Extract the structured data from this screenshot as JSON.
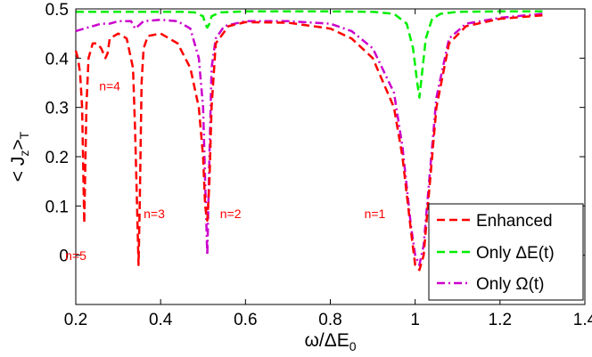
{
  "chart_data": {
    "type": "line",
    "title": "",
    "xlabel": "ω/ΔE",
    "xlabel_sub": "0",
    "ylabel": "< J",
    "ylabel_sub1": "z",
    "ylabel_mid": ">",
    "ylabel_sub2": "T",
    "xlim": [
      0.2,
      1.4
    ],
    "ylim": [
      -0.1,
      0.5
    ],
    "xticks": [
      0.2,
      0.4,
      0.6,
      0.8,
      1,
      1.2,
      1.4
    ],
    "xtick_labels": [
      "0.2",
      "0.4",
      "0.6",
      "0.8",
      "1",
      "1.2",
      "1.4"
    ],
    "yticks": [
      0,
      0.1,
      0.2,
      0.3,
      0.4,
      0.5
    ],
    "ytick_labels": [
      "0",
      "0.1",
      "0.2",
      "0.3",
      "0.4",
      "0.5"
    ],
    "grid": false,
    "legend_position": "bottom-right",
    "series": [
      {
        "name": "Enhanced",
        "color": "#ff0000",
        "style": "dashed",
        "x": [
          0.2,
          0.205,
          0.21,
          0.215,
          0.22,
          0.225,
          0.23,
          0.24,
          0.25,
          0.255,
          0.26,
          0.265,
          0.27,
          0.275,
          0.28,
          0.3,
          0.32,
          0.335,
          0.34,
          0.345,
          0.348,
          0.351,
          0.355,
          0.36,
          0.37,
          0.4,
          0.44,
          0.47,
          0.49,
          0.5,
          0.505,
          0.51,
          0.515,
          0.52,
          0.53,
          0.56,
          0.6,
          0.7,
          0.8,
          0.85,
          0.9,
          0.95,
          0.97,
          0.99,
          1.0,
          1.01,
          1.02,
          1.03,
          1.05,
          1.08,
          1.12,
          1.2,
          1.3
        ],
        "values": [
          0.415,
          0.4,
          0.37,
          0.3,
          0.065,
          0.3,
          0.4,
          0.43,
          0.43,
          0.425,
          0.42,
          0.41,
          0.4,
          0.41,
          0.44,
          0.45,
          0.44,
          0.38,
          0.25,
          0.08,
          -0.02,
          0.12,
          0.35,
          0.42,
          0.445,
          0.45,
          0.43,
          0.38,
          0.3,
          0.2,
          0.1,
          0.07,
          0.15,
          0.3,
          0.43,
          0.465,
          0.473,
          0.472,
          0.46,
          0.44,
          0.4,
          0.3,
          0.2,
          0.05,
          -0.02,
          -0.03,
          0.0,
          0.1,
          0.3,
          0.43,
          0.465,
          0.48,
          0.487
        ]
      },
      {
        "name": "Only ΔE(t)",
        "legend_main": "Only ",
        "legend_symbol": "ΔE(t)",
        "color": "#00ee00",
        "style": "dashed",
        "x": [
          0.2,
          0.3,
          0.4,
          0.45,
          0.48,
          0.5,
          0.505,
          0.51,
          0.515,
          0.52,
          0.54,
          0.6,
          0.8,
          0.9,
          0.95,
          0.98,
          0.995,
          1.005,
          1.01,
          1.015,
          1.025,
          1.04,
          1.06,
          1.1,
          1.2,
          1.3
        ],
        "values": [
          0.494,
          0.494,
          0.494,
          0.494,
          0.493,
          0.485,
          0.47,
          0.462,
          0.47,
          0.485,
          0.493,
          0.495,
          0.495,
          0.494,
          0.49,
          0.47,
          0.42,
          0.35,
          0.32,
          0.36,
          0.44,
          0.48,
          0.49,
          0.494,
          0.495,
          0.495
        ]
      },
      {
        "name": "Only Ω(t)",
        "legend_main": "Only ",
        "legend_symbol": "Ω(t)",
        "color": "#cc00cc",
        "style": "dashdot",
        "x": [
          0.2,
          0.22,
          0.24,
          0.26,
          0.28,
          0.3,
          0.33,
          0.34,
          0.36,
          0.4,
          0.44,
          0.47,
          0.49,
          0.5,
          0.505,
          0.51,
          0.515,
          0.52,
          0.53,
          0.55,
          0.6,
          0.7,
          0.8,
          0.85,
          0.9,
          0.95,
          0.97,
          0.99,
          1.0,
          1.01,
          1.02,
          1.03,
          1.05,
          1.08,
          1.12,
          1.2,
          1.3
        ],
        "values": [
          0.455,
          0.46,
          0.465,
          0.47,
          0.47,
          0.475,
          0.475,
          0.46,
          0.475,
          0.478,
          0.475,
          0.46,
          0.4,
          0.3,
          0.15,
          0.0,
          0.2,
          0.38,
          0.44,
          0.465,
          0.475,
          0.475,
          0.47,
          0.455,
          0.42,
          0.33,
          0.22,
          0.06,
          0.0,
          -0.02,
          0.02,
          0.12,
          0.32,
          0.44,
          0.47,
          0.482,
          0.49
        ]
      }
    ],
    "annotations": [
      {
        "text": "n=4",
        "x": 0.28,
        "y": 0.335,
        "color": "#ff0000"
      },
      {
        "text": "n=3",
        "x": 0.385,
        "y": 0.075,
        "color": "#ff0000"
      },
      {
        "text": "n=2",
        "x": 0.565,
        "y": 0.075,
        "color": "#ff0000"
      },
      {
        "text": "n=1",
        "x": 0.905,
        "y": 0.075,
        "color": "#ff0000"
      },
      {
        "text": "n=5",
        "x": 0.2,
        "y": -0.01,
        "color": "#ff0000"
      }
    ]
  }
}
